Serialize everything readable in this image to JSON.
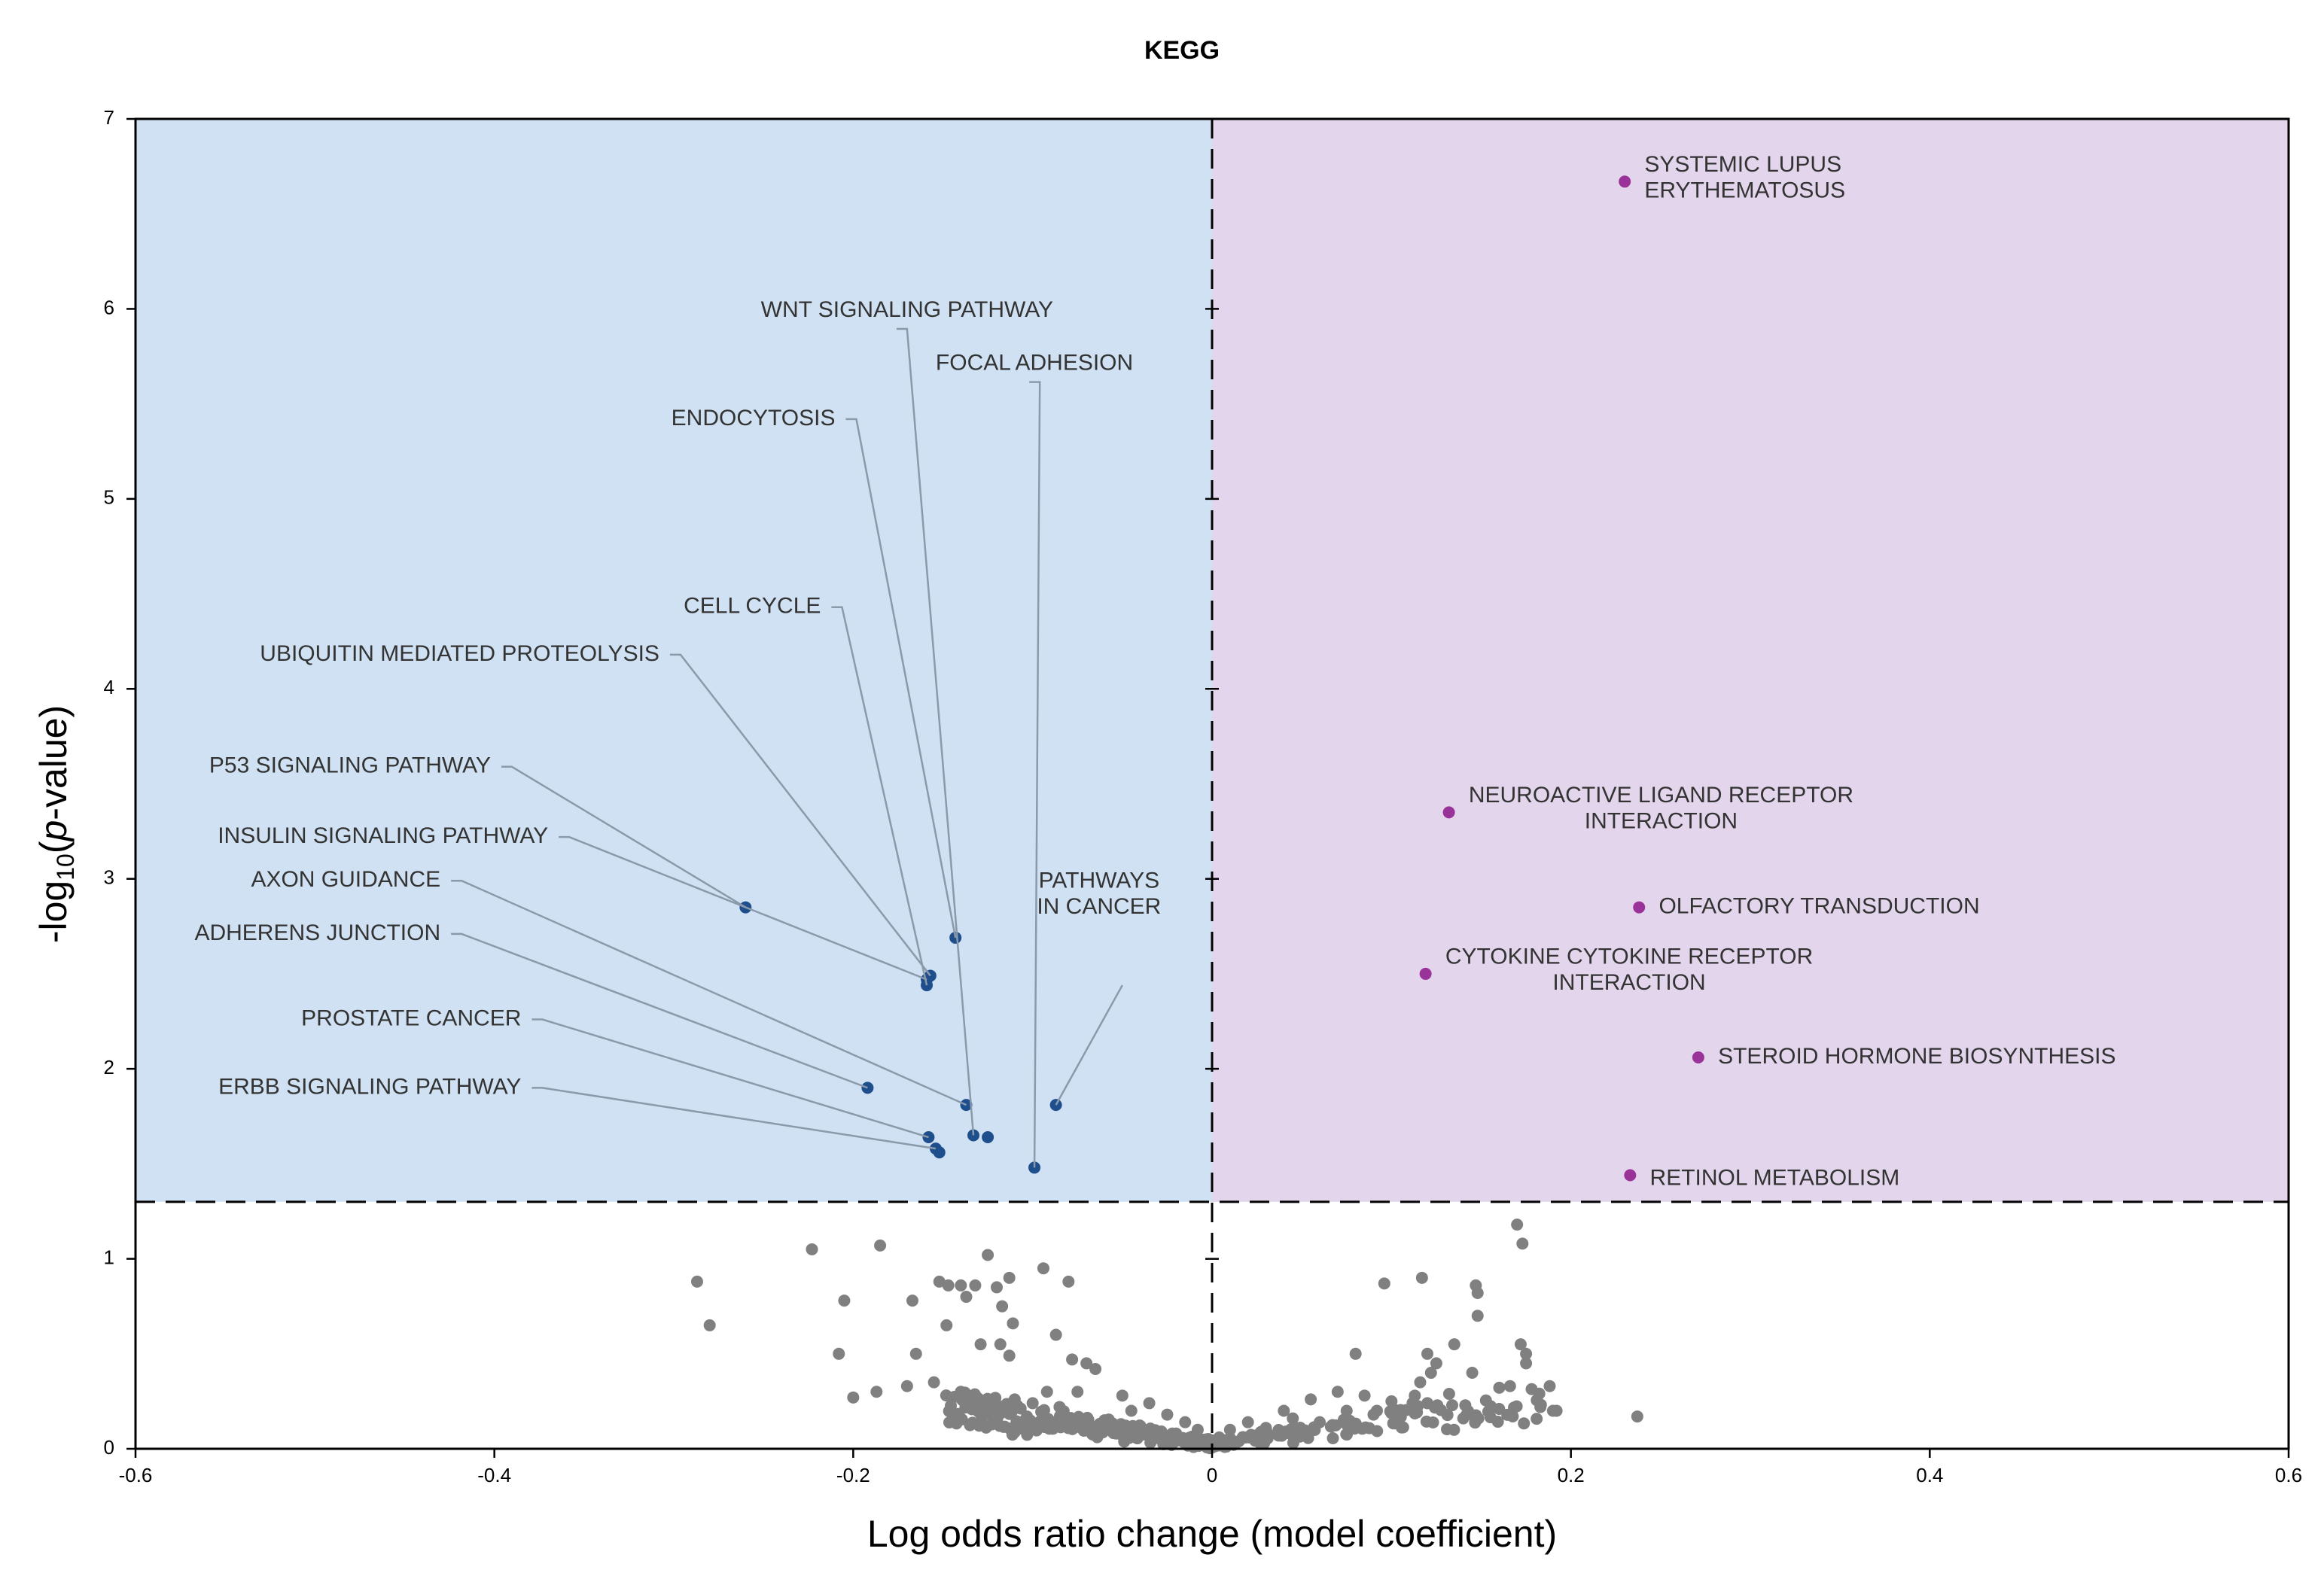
{
  "chart_data": {
    "type": "scatter",
    "title": "KEGG",
    "xlabel": "Log odds ratio change (model coefficient)",
    "ylabel": {
      "prefix": "-log",
      "subscript": "10",
      "open": "(",
      "italic": "p",
      "suffix": "-value)"
    },
    "xlim": [
      -0.6,
      0.6
    ],
    "ylim": [
      0,
      7
    ],
    "x_ticks": [
      -0.6,
      -0.4,
      -0.2,
      0,
      0.2,
      0.4,
      0.6
    ],
    "x_tick_labels": [
      "-0.6",
      "-0.4",
      "-0.2",
      "0",
      "0.2",
      "0.4",
      "0.6"
    ],
    "y_ticks": [
      0,
      1,
      2,
      3,
      4,
      5,
      6,
      7
    ],
    "y_tick_labels": [
      "0",
      "1",
      "2",
      "3",
      "4",
      "5",
      "6",
      "7"
    ],
    "significance_threshold": 1.3,
    "colors": {
      "negative_region": "#cfe1f2",
      "positive_region": "#e3d6ec",
      "negative_point": "#1f4e8c",
      "positive_point": "#993399",
      "nonsignificant_point": "#808080",
      "leader_line": "#8a9aaa",
      "label_text": "#333333"
    },
    "negative_significant": [
      {
        "name": "WNT SIGNALING PATHWAY",
        "x": -0.133,
        "y": 1.65,
        "label_at": [
          -0.17,
          5.99
        ],
        "anchor": "middle"
      },
      {
        "name": "FOCAL ADHESION",
        "x": -0.099,
        "y": 1.48,
        "label_at": [
          -0.099,
          5.71
        ],
        "anchor": "middle"
      },
      {
        "name": "ENDOCYTOSIS",
        "x": -0.143,
        "y": 2.69,
        "label_at": [
          -0.21,
          5.42
        ],
        "anchor": "end"
      },
      {
        "name": "CELL CYCLE",
        "x": -0.159,
        "y": 2.44,
        "label_at": [
          -0.218,
          4.43
        ],
        "anchor": "end"
      },
      {
        "name": "UBIQUITIN MEDIATED PROTEOLYSIS",
        "x": -0.157,
        "y": 2.49,
        "label_at": [
          -0.308,
          4.18
        ],
        "anchor": "end"
      },
      {
        "name": "P53 SIGNALING PATHWAY",
        "x": -0.26,
        "y": 2.85,
        "label_at": [
          -0.402,
          3.59
        ],
        "anchor": "end"
      },
      {
        "name": "INSULIN SIGNALING PATHWAY",
        "x": -0.159,
        "y": 2.47,
        "label_at": [
          -0.37,
          3.22
        ],
        "anchor": "end"
      },
      {
        "name": "AXON GUIDANCE",
        "x": -0.137,
        "y": 1.81,
        "label_at": [
          -0.43,
          2.99
        ],
        "anchor": "end"
      },
      {
        "name": "ADHERENS JUNCTION",
        "x": -0.192,
        "y": 1.9,
        "label_at": [
          -0.43,
          2.71
        ],
        "anchor": "end"
      },
      {
        "name": "PROSTATE CANCER",
        "x": -0.158,
        "y": 1.64,
        "label_at": [
          -0.385,
          2.26
        ],
        "anchor": "end"
      },
      {
        "name": "ERBB SIGNALING PATHWAY",
        "x": -0.154,
        "y": 1.58,
        "label_at": [
          -0.385,
          1.9
        ],
        "anchor": "end"
      },
      {
        "name": "PATHWAYS IN CANCER",
        "lines": [
          "PATHWAYS",
          "IN CANCER"
        ],
        "x": -0.087,
        "y": 1.81,
        "label_at": [
          -0.063,
          2.92
        ],
        "anchor": "middle"
      }
    ],
    "negative_unlabeled": [
      {
        "x": -0.125,
        "y": 1.64
      },
      {
        "x": -0.152,
        "y": 1.56
      }
    ],
    "positive_significant": [
      {
        "name": "SYSTEMIC LUPUS ERYTHEMATOSUS",
        "lines": [
          "SYSTEMIC LUPUS",
          "ERYTHEMATOSUS"
        ],
        "x": 0.23,
        "y": 6.67,
        "label_at": [
          0.241,
          6.69
        ],
        "anchor": "start",
        "align": [
          "start",
          "start"
        ]
      },
      {
        "name": "NEUROACTIVE LIGAND RECEPTOR INTERACTION",
        "lines": [
          "NEUROACTIVE LIGAND RECEPTOR",
          "INTERACTION"
        ],
        "x": 0.132,
        "y": 3.35,
        "label_at": [
          0.143,
          3.37
        ],
        "anchor": "start",
        "align": [
          "start",
          "center"
        ]
      },
      {
        "name": "OLFACTORY TRANSDUCTION",
        "x": 0.238,
        "y": 2.85,
        "label_at": [
          0.249,
          2.85
        ],
        "anchor": "start"
      },
      {
        "name": "CYTOKINE CYTOKINE RECEPTOR INTERACTION",
        "lines": [
          "CYTOKINE CYTOKINE RECEPTOR",
          "INTERACTION"
        ],
        "x": 0.119,
        "y": 2.5,
        "label_at": [
          0.13,
          2.52
        ],
        "anchor": "start",
        "align": [
          "start",
          "center"
        ]
      },
      {
        "name": "STEROID HORMONE BIOSYNTHESIS",
        "x": 0.271,
        "y": 2.06,
        "label_at": [
          0.282,
          2.06
        ],
        "anchor": "start"
      },
      {
        "name": "RETINOL METABOLISM",
        "x": 0.233,
        "y": 1.44,
        "label_at": [
          0.244,
          1.42
        ],
        "anchor": "start"
      }
    ],
    "nonsignificant": [
      [
        -0.287,
        0.88
      ],
      [
        -0.28,
        0.65
      ],
      [
        -0.223,
        1.05
      ],
      [
        -0.205,
        0.78
      ],
      [
        -0.185,
        1.07
      ],
      [
        -0.208,
        0.5
      ],
      [
        -0.2,
        0.27
      ],
      [
        -0.187,
        0.3
      ],
      [
        -0.17,
        0.33
      ],
      [
        -0.167,
        0.78
      ],
      [
        -0.165,
        0.5
      ],
      [
        -0.155,
        0.35
      ],
      [
        -0.152,
        0.88
      ],
      [
        -0.148,
        0.65
      ],
      [
        -0.147,
        0.86
      ],
      [
        -0.14,
        0.86
      ],
      [
        -0.132,
        0.86
      ],
      [
        -0.137,
        0.8
      ],
      [
        -0.125,
        1.02
      ],
      [
        -0.129,
        0.55
      ],
      [
        -0.12,
        0.85
      ],
      [
        -0.117,
        0.75
      ],
      [
        -0.113,
        0.9
      ],
      [
        -0.111,
        0.66
      ],
      [
        -0.118,
        0.55
      ],
      [
        -0.113,
        0.49
      ],
      [
        -0.094,
        0.95
      ],
      [
        -0.08,
        0.88
      ],
      [
        -0.087,
        0.6
      ],
      [
        -0.078,
        0.47
      ],
      [
        -0.075,
        0.3
      ],
      [
        -0.07,
        0.45
      ],
      [
        -0.065,
        0.42
      ],
      [
        -0.14,
        0.3
      ],
      [
        -0.132,
        0.25
      ],
      [
        -0.12,
        0.22
      ],
      [
        -0.11,
        0.26
      ],
      [
        -0.1,
        0.24
      ],
      [
        -0.092,
        0.3
      ],
      [
        -0.085,
        0.22
      ],
      [
        -0.05,
        0.28
      ],
      [
        -0.045,
        0.2
      ],
      [
        -0.035,
        0.24
      ],
      [
        -0.025,
        0.18
      ],
      [
        -0.015,
        0.14
      ],
      [
        -0.008,
        0.1
      ],
      [
        -0.003,
        0.05
      ],
      [
        0.004,
        0.06
      ],
      [
        0.01,
        0.1
      ],
      [
        0.02,
        0.14
      ],
      [
        0.03,
        0.11
      ],
      [
        0.045,
        0.16
      ],
      [
        0.06,
        0.14
      ],
      [
        0.075,
        0.2
      ],
      [
        0.09,
        0.18
      ],
      [
        0.1,
        0.25
      ],
      [
        0.113,
        0.28
      ],
      [
        0.12,
        0.24
      ],
      [
        0.096,
        0.87
      ],
      [
        0.117,
        0.9
      ],
      [
        0.14,
        0.16
      ],
      [
        0.16,
        0.21
      ],
      [
        0.183,
        0.22
      ],
      [
        0.19,
        0.2
      ],
      [
        0.192,
        0.2
      ],
      [
        0.237,
        0.17
      ],
      [
        0.17,
        1.18
      ],
      [
        0.173,
        1.08
      ],
      [
        0.147,
        0.86
      ],
      [
        0.148,
        0.82
      ],
      [
        0.148,
        0.7
      ],
      [
        0.175,
        0.45
      ],
      [
        0.175,
        0.5
      ],
      [
        0.172,
        0.55
      ],
      [
        0.125,
        0.45
      ],
      [
        0.12,
        0.5
      ],
      [
        0.135,
        0.55
      ],
      [
        0.116,
        0.35
      ],
      [
        0.122,
        0.4
      ],
      [
        0.145,
        0.4
      ],
      [
        0.08,
        0.5
      ],
      [
        0.085,
        0.28
      ],
      [
        0.07,
        0.3
      ],
      [
        0.055,
        0.26
      ],
      [
        0.04,
        0.2
      ],
      [
        -0.06,
        0.15
      ],
      [
        -0.055,
        0.1
      ],
      [
        -0.04,
        0.12
      ],
      [
        -0.02,
        0.08
      ],
      [
        0.015,
        0.04
      ],
      [
        -0.013,
        0.02
      ],
      [
        0.007,
        0.01
      ]
    ]
  }
}
